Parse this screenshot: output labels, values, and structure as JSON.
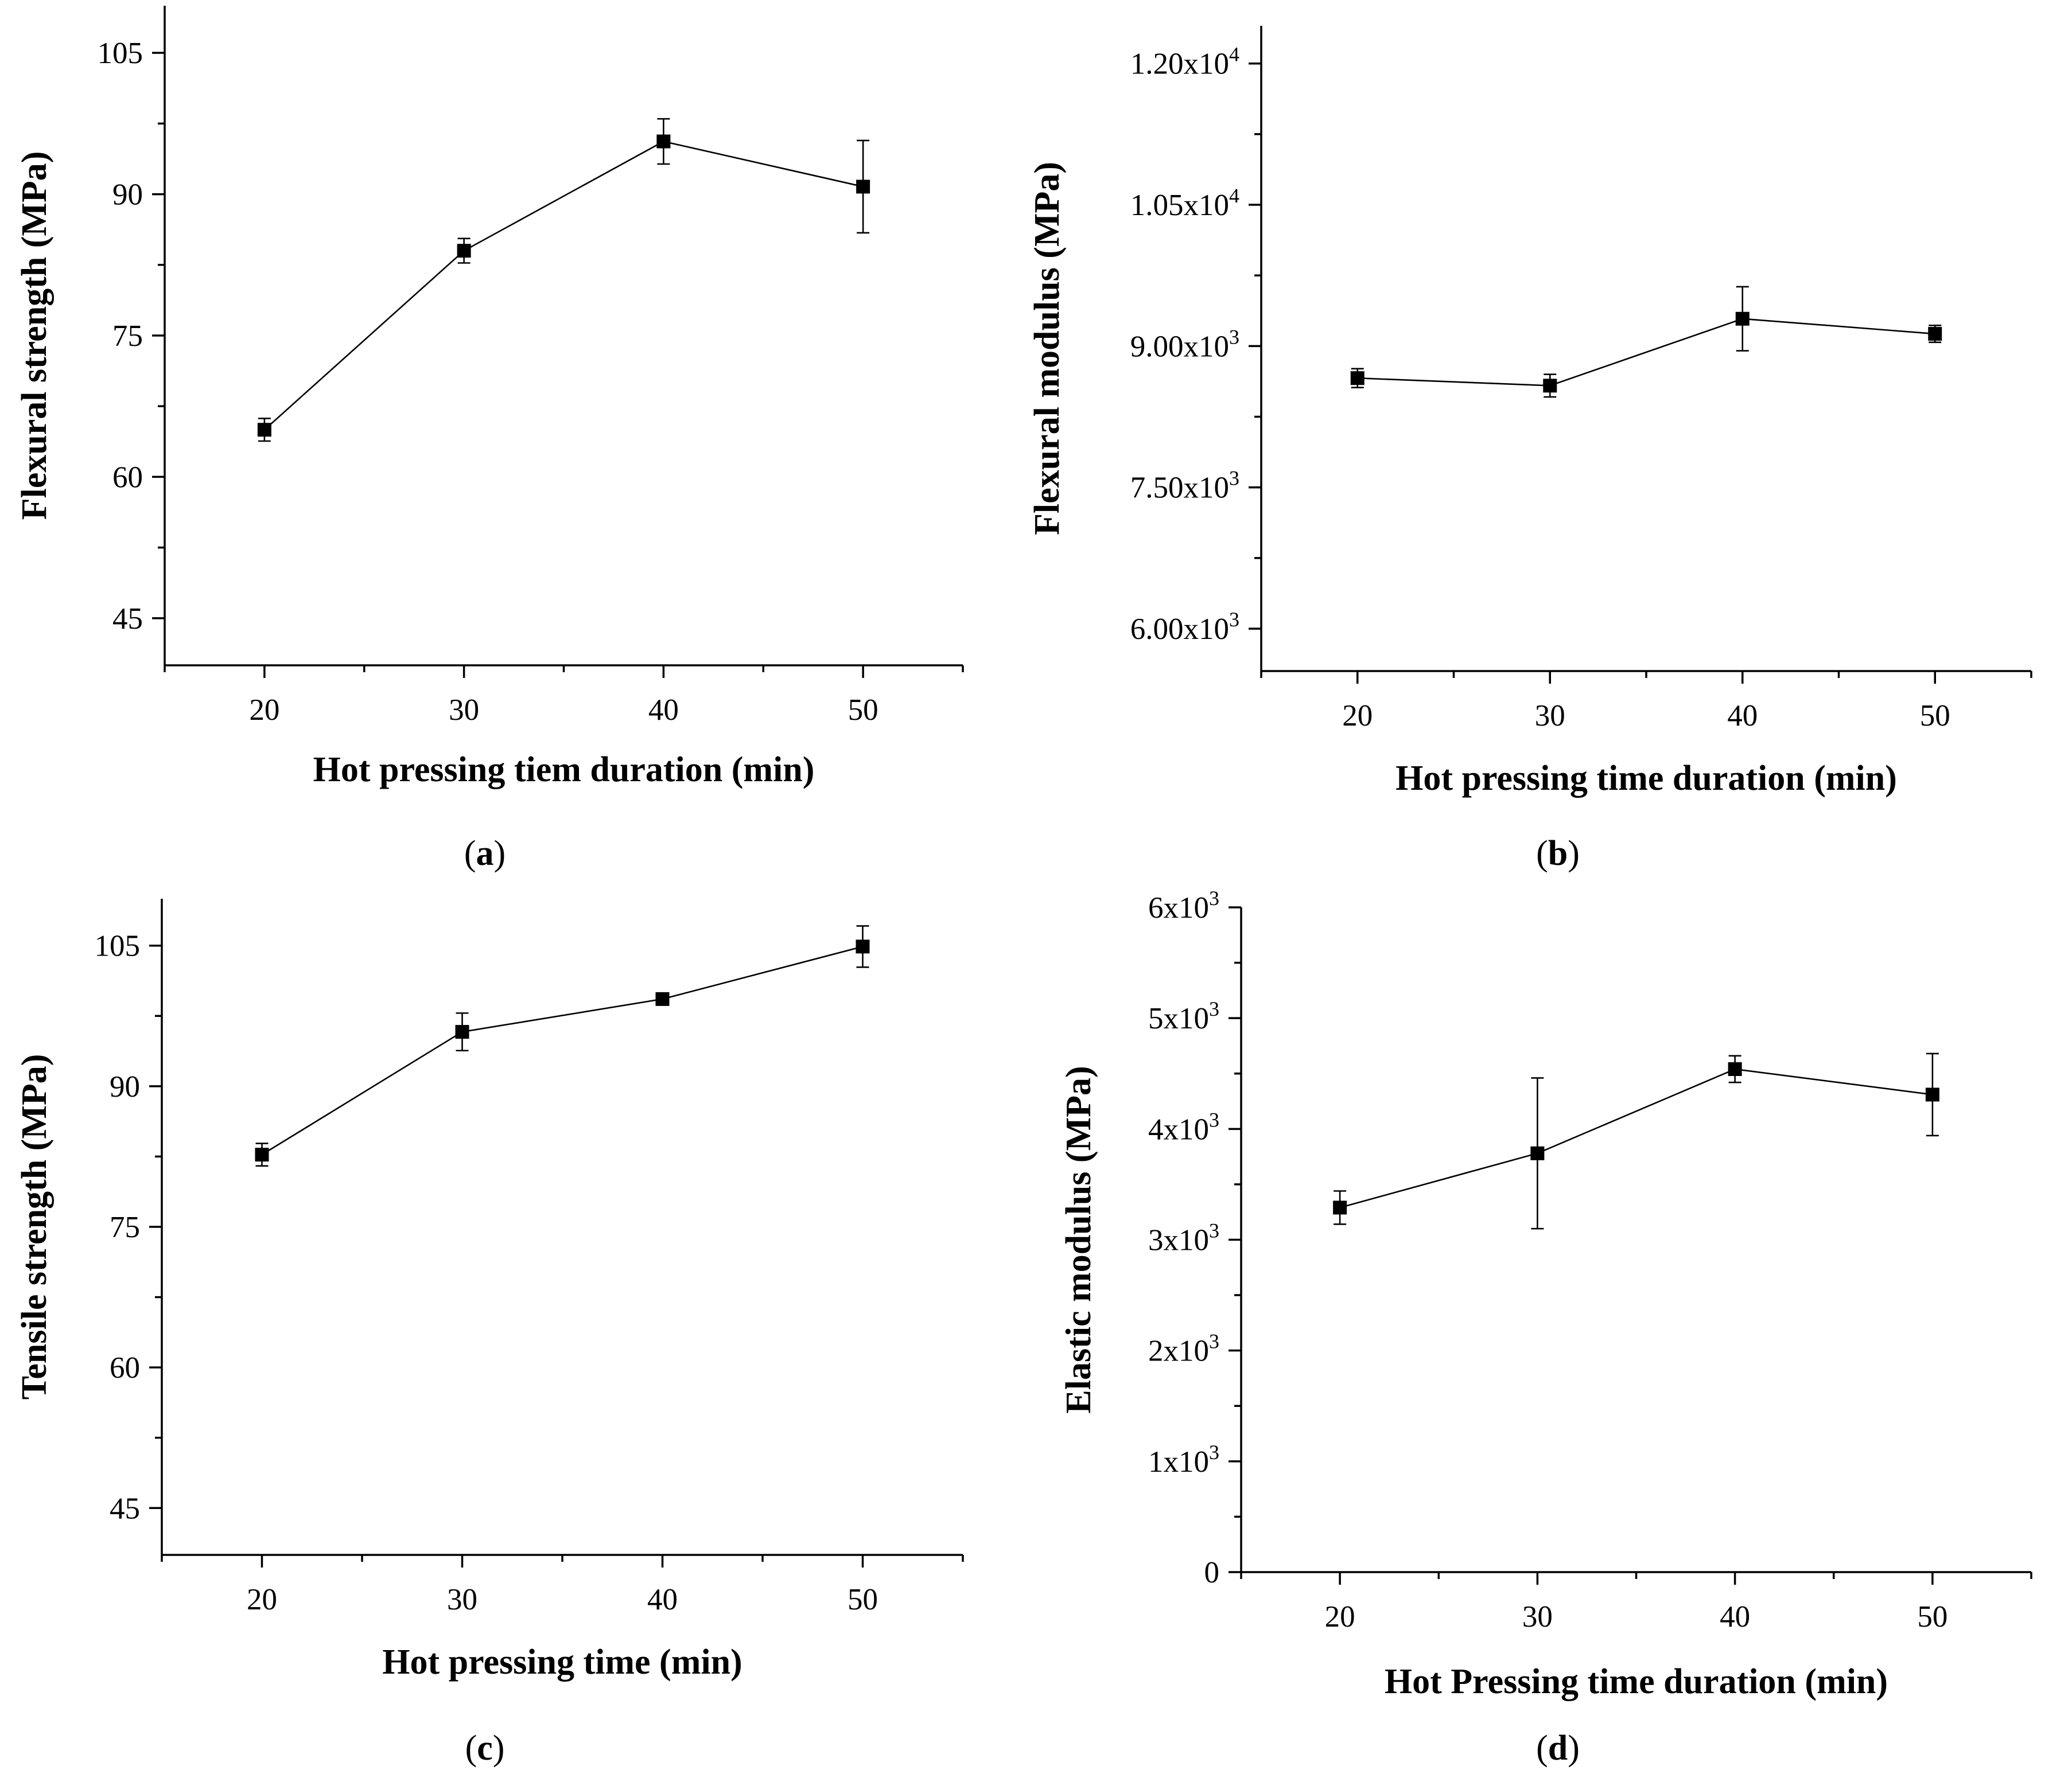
{
  "figure": {
    "captions": [
      "(a)",
      "(b)",
      "(c)",
      "(d)"
    ]
  },
  "chart_data": [
    {
      "type": "line",
      "panel": "a",
      "caption": "(a)",
      "xlabel": "Hot pressing tiem duration (min)",
      "ylabel": "Flexural strength (MPa)",
      "x": [
        20,
        30,
        40,
        50
      ],
      "series": [
        {
          "name": "Flexural strength",
          "values": [
            65.0,
            84.0,
            95.6,
            90.8
          ],
          "errors": [
            1.2,
            1.3,
            2.4,
            4.9
          ]
        }
      ],
      "xlim": [
        15,
        55
      ],
      "ylim": [
        40,
        110
      ],
      "x_ticks": [
        20,
        30,
        40,
        50
      ],
      "y_ticks": [
        45,
        60,
        75,
        90,
        105
      ],
      "y_tick_labels": [
        {
          "base": "45"
        },
        {
          "base": "60"
        },
        {
          "base": "75"
        },
        {
          "base": "90"
        },
        {
          "base": "105"
        }
      ]
    },
    {
      "type": "line",
      "panel": "b",
      "caption": "(b)",
      "xlabel": "Hot pressing time duration (min)",
      "ylabel": "Flexural modulus (MPa)",
      "x": [
        20,
        30,
        40,
        50
      ],
      "series": [
        {
          "name": "Flexural modulus",
          "values": [
            8660,
            8580,
            9290,
            9130
          ],
          "errors": [
            100,
            120,
            340,
            90
          ]
        }
      ],
      "xlim": [
        15,
        55
      ],
      "ylim": [
        5550,
        12400
      ],
      "x_ticks": [
        20,
        30,
        40,
        50
      ],
      "y_ticks": [
        6000,
        7500,
        9000,
        10500,
        12000
      ],
      "y_tick_labels": [
        {
          "base": "6.00x10",
          "exp": "3"
        },
        {
          "base": "7.50x10",
          "exp": "3"
        },
        {
          "base": "9.00x10",
          "exp": "3"
        },
        {
          "base": "1.05x10",
          "exp": "4"
        },
        {
          "base": "1.20x10",
          "exp": "4"
        }
      ]
    },
    {
      "type": "line",
      "panel": "c",
      "caption": "(c)",
      "xlabel": "Hot pressing time (min)",
      "ylabel": "Tensile strength (MPa)",
      "x": [
        20,
        30,
        40,
        50
      ],
      "series": [
        {
          "name": "Tensile strength",
          "values": [
            82.7,
            95.8,
            99.3,
            104.9
          ],
          "errors": [
            1.2,
            2.0,
            0.4,
            2.2
          ]
        }
      ],
      "xlim": [
        15,
        55
      ],
      "ylim": [
        40,
        110
      ],
      "x_ticks": [
        20,
        30,
        40,
        50
      ],
      "y_ticks": [
        45,
        60,
        75,
        90,
        105
      ],
      "y_tick_labels": [
        {
          "base": "45"
        },
        {
          "base": "60"
        },
        {
          "base": "75"
        },
        {
          "base": "90"
        },
        {
          "base": "105"
        }
      ]
    },
    {
      "type": "line",
      "panel": "d",
      "caption": "(d)",
      "xlabel": "Hot Pressing time duration (min)",
      "ylabel": "Elastic modulus (MPa)",
      "x": [
        20,
        30,
        40,
        50
      ],
      "series": [
        {
          "name": "Elastic modulus",
          "values": [
            3290,
            3780,
            4540,
            4310
          ],
          "errors": [
            150,
            680,
            120,
            370
          ]
        }
      ],
      "xlim": [
        15,
        55
      ],
      "ylim": [
        0,
        6000
      ],
      "x_ticks": [
        20,
        30,
        40,
        50
      ],
      "y_ticks": [
        0,
        1000,
        2000,
        3000,
        4000,
        5000,
        6000
      ],
      "y_tick_labels": [
        {
          "base": "0"
        },
        {
          "base": "1x10",
          "exp": "3"
        },
        {
          "base": "2x10",
          "exp": "3"
        },
        {
          "base": "3x10",
          "exp": "3"
        },
        {
          "base": "4x10",
          "exp": "3"
        },
        {
          "base": "5x10",
          "exp": "3"
        },
        {
          "base": "6x10",
          "exp": "3"
        }
      ]
    }
  ]
}
